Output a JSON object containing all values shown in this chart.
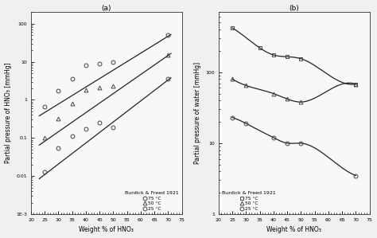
{
  "panel_a": {
    "title": "(a)",
    "xlabel": "Weight % of HNO₃",
    "ylabel": "Partial pressure of HNO₃ [mmHg]",
    "ylim_low": 0.001,
    "ylim_high": 200,
    "xlim": [
      20,
      75
    ],
    "xticks": [
      20,
      25,
      30,
      35,
      40,
      45,
      50,
      55,
      60,
      65,
      70,
      75
    ],
    "legend_title": "Burdick & Freed 1921",
    "legend_loc": "lower right",
    "series": [
      {
        "label": "75 °C",
        "marker": "o",
        "marker_size": 3.5,
        "x_data": [
          25,
          30,
          35,
          40,
          45,
          50,
          70
        ],
        "y_data": [
          0.65,
          1.7,
          3.5,
          8.0,
          9.0,
          10.0,
          50.0
        ],
        "line_x": [
          23,
          71
        ],
        "line_y": [
          0.38,
          52.0
        ]
      },
      {
        "label": "50 °C",
        "marker": "^",
        "marker_size": 3.5,
        "x_data": [
          25,
          30,
          35,
          40,
          45,
          50,
          70
        ],
        "y_data": [
          0.1,
          0.32,
          0.8,
          1.8,
          2.1,
          2.3,
          15.0
        ],
        "line_x": [
          23,
          71
        ],
        "line_y": [
          0.065,
          16.5
        ]
      },
      {
        "label": "25 °C",
        "marker": "o",
        "marker_size": 3.5,
        "x_data": [
          25,
          30,
          35,
          40,
          45,
          50,
          70
        ],
        "y_data": [
          0.013,
          0.055,
          0.11,
          0.17,
          0.25,
          0.19,
          3.5
        ],
        "line_x": [
          23,
          71
        ],
        "line_y": [
          0.0085,
          3.8
        ]
      }
    ]
  },
  "panel_b": {
    "title": "(b)",
    "xlabel": "Weight % of HNO₃",
    "ylabel": "Partial pressure of water [mmHg]",
    "ylim_low": 1,
    "ylim_high": 700,
    "xlim": [
      20,
      75
    ],
    "xticks": [
      20,
      25,
      30,
      35,
      40,
      45,
      50,
      55,
      60,
      65,
      70,
      75
    ],
    "legend_title": "Burdick & Freed 1921",
    "legend_loc": "lower left",
    "series": [
      {
        "label": "75 °C",
        "marker": "s",
        "marker_size": 3.5,
        "x_data": [
          25,
          35,
          40,
          45,
          50,
          70
        ],
        "y_data": [
          420,
          220,
          175,
          165,
          155,
          68
        ],
        "curve_x": [
          25,
          35,
          40,
          45,
          50,
          65,
          70
        ],
        "curve_y": [
          420,
          220,
          175,
          165,
          155,
          72,
          68
        ]
      },
      {
        "label": "50 °C",
        "marker": "^",
        "marker_size": 3.5,
        "x_data": [
          25,
          30,
          40,
          45,
          50,
          70
        ],
        "y_data": [
          80,
          65,
          50,
          42,
          38,
          68
        ],
        "curve_x": [
          25,
          30,
          40,
          45,
          50,
          65,
          70
        ],
        "curve_y": [
          80,
          65,
          50,
          42,
          38,
          68,
          68
        ]
      },
      {
        "label": "25 °C",
        "marker": "o",
        "marker_size": 3.5,
        "x_data": [
          25,
          30,
          40,
          45,
          50,
          70
        ],
        "y_data": [
          23,
          19,
          12,
          10,
          10,
          3.5
        ],
        "curve_x": [
          25,
          30,
          35,
          40,
          45,
          50,
          65,
          70
        ],
        "curve_y": [
          23,
          19,
          15,
          12,
          10,
          10,
          4.5,
          3.5
        ]
      }
    ]
  },
  "background_color": "#f0f0f0",
  "plot_bg_color": "#f8f8f8",
  "line_color": "#222222",
  "marker_facecolor": "none",
  "marker_edgecolor": "#444444"
}
